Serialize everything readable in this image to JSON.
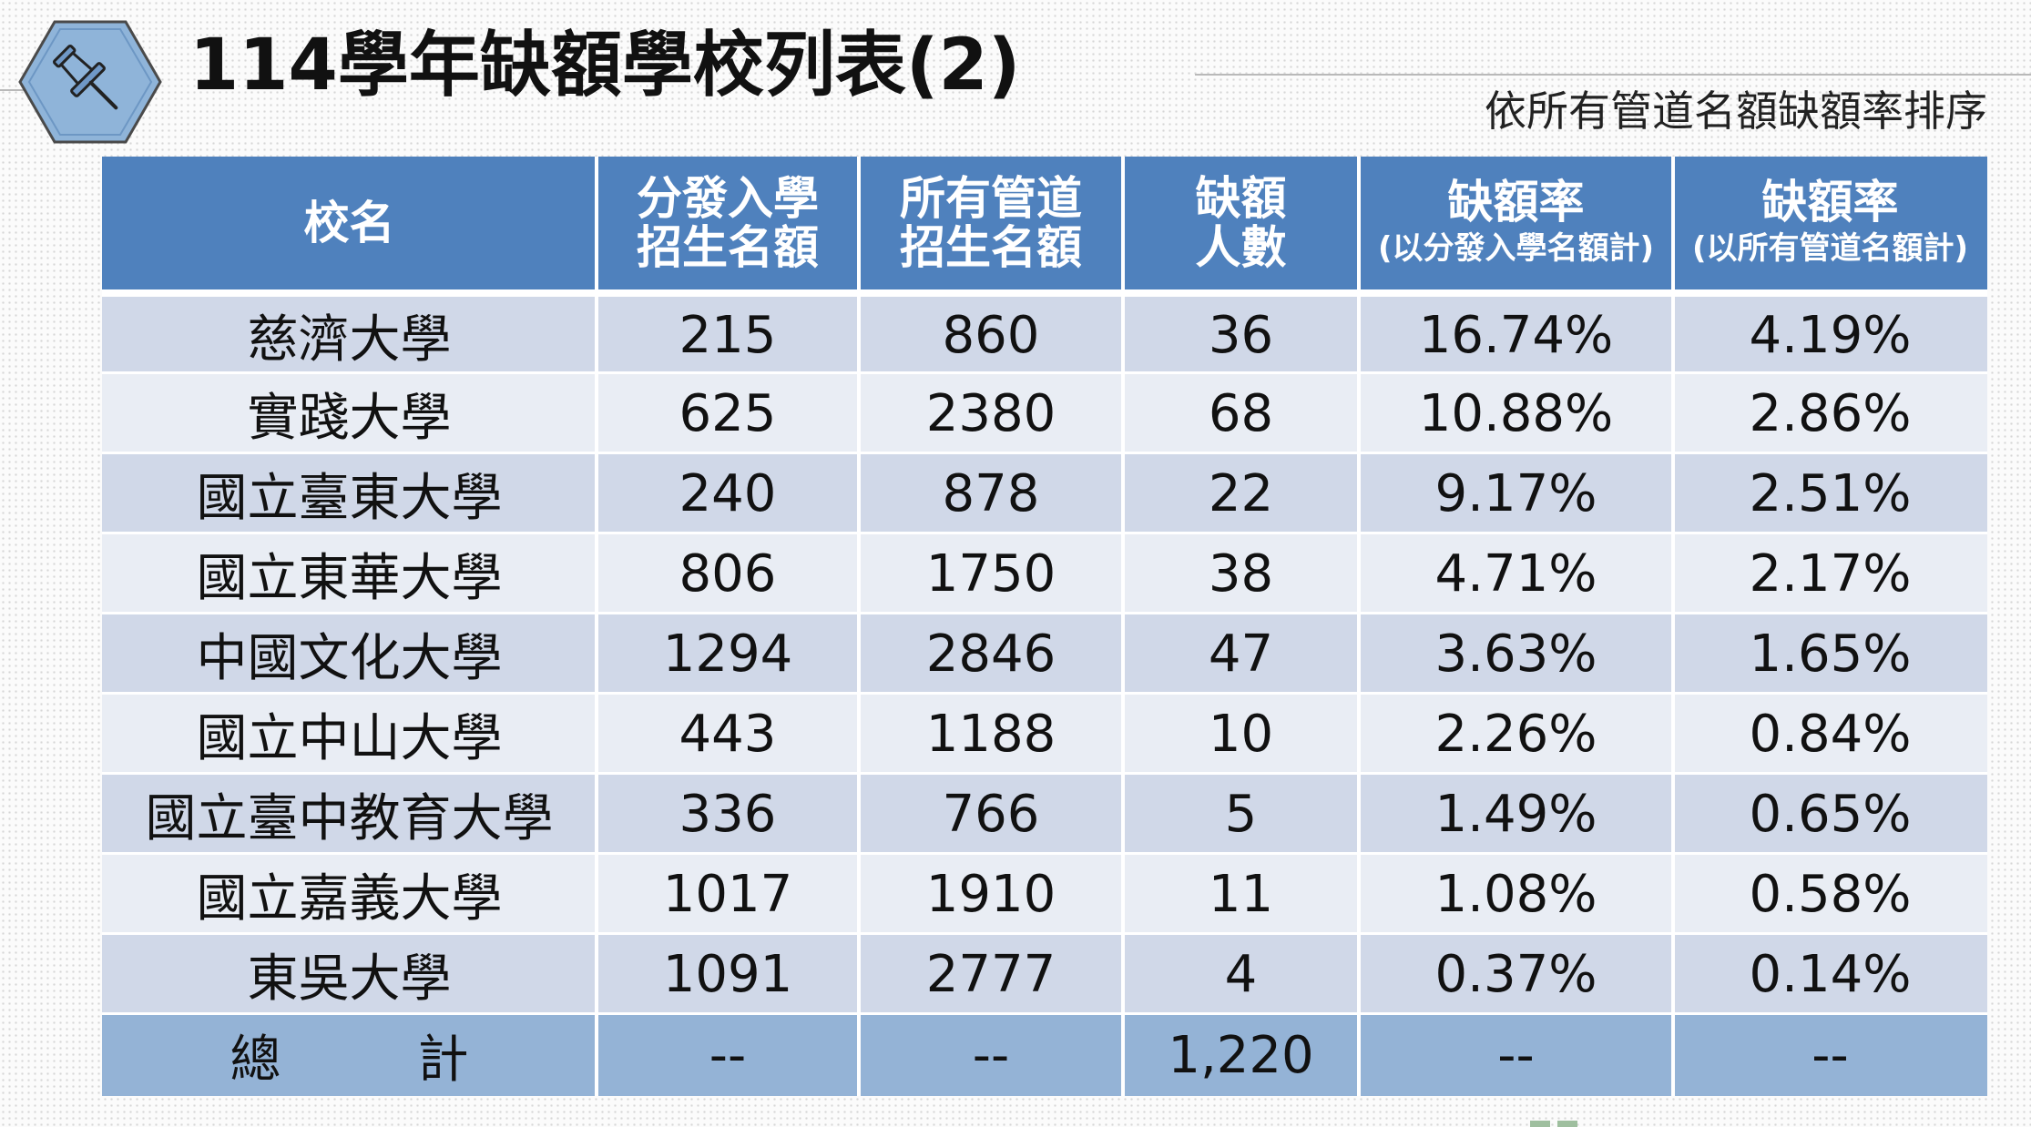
{
  "title": "114學年缺額學校列表(2)",
  "sort_note": "依所有管道名額缺額率排序",
  "icon": "pushpin-icon",
  "colors": {
    "header_bg": "#4f81bd",
    "row_odd": "#d0d8e8",
    "row_even": "#e9edf4",
    "total_bg": "#94b3d6",
    "hexagon": "#8fb4d9"
  },
  "table": {
    "headers": {
      "school": "校名",
      "alloc_quota_line1": "分發入學",
      "alloc_quota_line2": "招生名額",
      "all_quota_line1": "所有管道",
      "all_quota_line2": "招生名額",
      "vacancy_line1": "缺額",
      "vacancy_line2": "人數",
      "rate_alloc_main": "缺額率",
      "rate_alloc_sub": "(以分發入學名額計)",
      "rate_all_main": "缺額率",
      "rate_all_sub": "(以所有管道名額計)"
    },
    "rows": [
      {
        "school": "慈濟大學",
        "alloc": "215",
        "all": "860",
        "vacancy": "36",
        "rate_alloc": "16.74%",
        "rate_all": "4.19%"
      },
      {
        "school": "實踐大學",
        "alloc": "625",
        "all": "2380",
        "vacancy": "68",
        "rate_alloc": "10.88%",
        "rate_all": "2.86%"
      },
      {
        "school": "國立臺東大學",
        "alloc": "240",
        "all": "878",
        "vacancy": "22",
        "rate_alloc": "9.17%",
        "rate_all": "2.51%"
      },
      {
        "school": "國立東華大學",
        "alloc": "806",
        "all": "1750",
        "vacancy": "38",
        "rate_alloc": "4.71%",
        "rate_all": "2.17%"
      },
      {
        "school": "中國文化大學",
        "alloc": "1294",
        "all": "2846",
        "vacancy": "47",
        "rate_alloc": "3.63%",
        "rate_all": "1.65%"
      },
      {
        "school": "國立中山大學",
        "alloc": "443",
        "all": "1188",
        "vacancy": "10",
        "rate_alloc": "2.26%",
        "rate_all": "0.84%"
      },
      {
        "school": "國立臺中教育大學",
        "alloc": "336",
        "all": "766",
        "vacancy": "5",
        "rate_alloc": "1.49%",
        "rate_all": "0.65%"
      },
      {
        "school": "國立嘉義大學",
        "alloc": "1017",
        "all": "1910",
        "vacancy": "11",
        "rate_alloc": "1.08%",
        "rate_all": "0.58%"
      },
      {
        "school": "東吳大學",
        "alloc": "1091",
        "all": "2777",
        "vacancy": "4",
        "rate_alloc": "0.37%",
        "rate_all": "0.14%"
      }
    ],
    "total": {
      "label_char1": "總",
      "label_char2": "計",
      "alloc": "--",
      "all": "--",
      "vacancy": "1,220",
      "rate_alloc": "--",
      "rate_all": "--"
    }
  }
}
